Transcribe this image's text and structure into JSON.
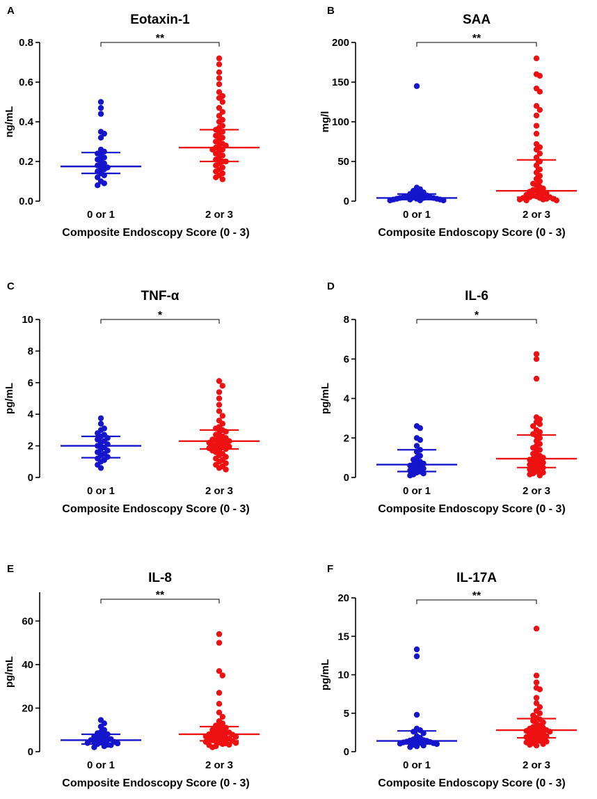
{
  "chart_data": [
    {
      "panel": "A",
      "type": "scatter",
      "title": "Eotaxin-1",
      "ylabel": "ng/mL",
      "xlabel": "Composite Endoscopy Score  (0 - 3)",
      "categories": [
        "0 or 1",
        "2 or 3"
      ],
      "ylim": [
        0,
        0.8
      ],
      "yticks": [
        0.0,
        0.2,
        0.4,
        0.6,
        0.8
      ],
      "ytick_labels": [
        "0.0",
        "0.2",
        "0.4",
        "0.6",
        "0.8"
      ],
      "significance": "**",
      "groups": [
        {
          "name": "0 or 1",
          "color": "#1515cc",
          "median": 0.175,
          "q1": 0.14,
          "q3": 0.245,
          "values": [
            0.5,
            0.47,
            0.44,
            0.35,
            0.34,
            0.32,
            0.26,
            0.25,
            0.24,
            0.23,
            0.22,
            0.21,
            0.2,
            0.19,
            0.18,
            0.17,
            0.17,
            0.16,
            0.15,
            0.14,
            0.13,
            0.12,
            0.1,
            0.09,
            0.08
          ]
        },
        {
          "name": "2 or 3",
          "color": "#ee1111",
          "median": 0.27,
          "q1": 0.2,
          "q3": 0.36,
          "values": [
            0.72,
            0.69,
            0.65,
            0.62,
            0.59,
            0.55,
            0.53,
            0.52,
            0.5,
            0.47,
            0.45,
            0.43,
            0.41,
            0.4,
            0.38,
            0.37,
            0.36,
            0.35,
            0.34,
            0.33,
            0.32,
            0.31,
            0.3,
            0.29,
            0.28,
            0.28,
            0.27,
            0.26,
            0.26,
            0.25,
            0.24,
            0.23,
            0.22,
            0.21,
            0.2,
            0.2,
            0.19,
            0.18,
            0.17,
            0.16,
            0.15,
            0.14,
            0.13,
            0.12,
            0.11
          ]
        }
      ]
    },
    {
      "panel": "B",
      "type": "scatter",
      "title": "SAA",
      "ylabel": "mg/l",
      "xlabel": "Composite Endoscopy Score  (0 - 3)",
      "categories": [
        "0 or 1",
        "2 or 3"
      ],
      "ylim": [
        0,
        200
      ],
      "yticks": [
        0,
        50,
        100,
        150,
        200
      ],
      "ytick_labels": [
        "0",
        "50",
        "100",
        "150",
        "200"
      ],
      "significance": "**",
      "groups": [
        {
          "name": "0 or 1",
          "color": "#1515cc",
          "median": 4,
          "q1": 2,
          "q3": 9,
          "values": [
            145,
            17,
            15,
            13,
            11,
            10,
            9,
            8,
            7,
            6,
            6,
            5,
            5,
            4,
            4,
            4,
            3,
            3,
            3,
            2,
            2,
            2,
            1,
            1,
            1
          ]
        },
        {
          "name": "2 or 3",
          "color": "#ee1111",
          "median": 13,
          "q1": 5,
          "q3": 52,
          "values": [
            180,
            160,
            158,
            142,
            138,
            120,
            115,
            108,
            95,
            85,
            72,
            68,
            65,
            60,
            55,
            50,
            45,
            40,
            36,
            32,
            28,
            25,
            22,
            20,
            18,
            16,
            14,
            13,
            12,
            11,
            10,
            9,
            8,
            7,
            6,
            5,
            5,
            4,
            4,
            3,
            3,
            2,
            2,
            1,
            1
          ]
        }
      ]
    },
    {
      "panel": "C",
      "type": "scatter",
      "title": "TNF-α",
      "ylabel": "pg/mL",
      "xlabel": "Composite Endoscopy Score  (0 - 3)",
      "categories": [
        "0 or 1",
        "2 or 3"
      ],
      "ylim": [
        0,
        10
      ],
      "yticks": [
        0,
        2,
        4,
        6,
        8,
        10
      ],
      "ytick_labels": [
        "0",
        "2",
        "4",
        "6",
        "8",
        "10"
      ],
      "significance": "*",
      "groups": [
        {
          "name": "0 or 1",
          "color": "#1515cc",
          "median": 2.0,
          "q1": 1.25,
          "q3": 2.6,
          "values": [
            3.75,
            3.4,
            3.1,
            3.0,
            2.8,
            2.7,
            2.6,
            2.5,
            2.4,
            2.3,
            2.2,
            2.1,
            2.0,
            1.9,
            1.8,
            1.7,
            1.6,
            1.5,
            1.4,
            1.3,
            1.2,
            1.1,
            1.0,
            0.8,
            0.6
          ]
        },
        {
          "name": "2 or 3",
          "color": "#ee1111",
          "median": 2.3,
          "q1": 1.8,
          "q3": 3.0,
          "values": [
            6.1,
            5.8,
            5.4,
            5.0,
            4.6,
            4.2,
            3.9,
            3.6,
            3.4,
            3.2,
            3.1,
            3.0,
            2.9,
            2.8,
            2.7,
            2.6,
            2.5,
            2.45,
            2.4,
            2.35,
            2.3,
            2.25,
            2.2,
            2.15,
            2.1,
            2.05,
            2.0,
            1.95,
            1.9,
            1.85,
            1.8,
            1.75,
            1.7,
            1.6,
            1.5,
            1.4,
            1.3,
            1.2,
            1.1,
            1.0,
            0.9,
            0.8,
            0.7,
            0.6,
            0.5
          ]
        }
      ]
    },
    {
      "panel": "D",
      "type": "scatter",
      "title": "IL-6",
      "ylabel": "pg/mL",
      "xlabel": "Composite Endoscopy Score  (0 - 3)",
      "categories": [
        "0 or 1",
        "2 or 3"
      ],
      "ylim": [
        0,
        8
      ],
      "yticks": [
        0,
        2,
        4,
        6,
        8
      ],
      "ytick_labels": [
        "0",
        "2",
        "4",
        "6",
        "8"
      ],
      "significance": "*",
      "groups": [
        {
          "name": "0 or 1",
          "color": "#1515cc",
          "median": 0.65,
          "q1": 0.3,
          "q3": 1.4,
          "values": [
            2.6,
            2.5,
            2.0,
            1.9,
            1.6,
            1.4,
            1.3,
            1.1,
            1.0,
            0.9,
            0.8,
            0.75,
            0.7,
            0.65,
            0.6,
            0.55,
            0.5,
            0.45,
            0.4,
            0.35,
            0.3,
            0.25,
            0.2,
            0.15,
            0.1
          ]
        },
        {
          "name": "2 or 3",
          "color": "#ee1111",
          "median": 0.95,
          "q1": 0.5,
          "q3": 2.15,
          "values": [
            6.25,
            6.0,
            5.0,
            3.05,
            2.95,
            2.8,
            2.7,
            2.6,
            2.4,
            2.3,
            2.2,
            2.1,
            2.0,
            1.85,
            1.7,
            1.6,
            1.5,
            1.4,
            1.3,
            1.2,
            1.1,
            1.05,
            1.0,
            0.95,
            0.9,
            0.85,
            0.8,
            0.75,
            0.7,
            0.65,
            0.6,
            0.55,
            0.5,
            0.45,
            0.4,
            0.35,
            0.3,
            0.25,
            0.2,
            0.15,
            0.1
          ]
        }
      ]
    },
    {
      "panel": "E",
      "type": "scatter",
      "title": "IL-8",
      "ylabel": "pg/mL",
      "xlabel": "Composite Endoscopy Score  (0 - 3)",
      "categories": [
        "0 or 1",
        "2 or 3"
      ],
      "ylim": [
        0,
        70
      ],
      "yticks": [
        0,
        20,
        40,
        60
      ],
      "ytick_labels": [
        "0",
        "20",
        "40",
        "60"
      ],
      "significance": "**",
      "groups": [
        {
          "name": "0 or 1",
          "color": "#1515cc",
          "median": 5.3,
          "q1": 3.5,
          "q3": 8.0,
          "values": [
            14.5,
            13.0,
            11.5,
            10.0,
            9.0,
            8.5,
            8.0,
            7.5,
            7.0,
            6.5,
            6.0,
            5.8,
            5.5,
            5.3,
            5.0,
            4.7,
            4.5,
            4.2,
            4.0,
            3.8,
            3.5,
            3.2,
            3.0,
            2.5,
            2.0
          ]
        },
        {
          "name": "2 or 3",
          "color": "#ee1111",
          "median": 8.0,
          "q1": 5.0,
          "q3": 11.5,
          "values": [
            54,
            50,
            37,
            35,
            27,
            22,
            18,
            16,
            14,
            13,
            12,
            11.5,
            11,
            10.5,
            10,
            9.5,
            9,
            8.8,
            8.5,
            8.2,
            8.0,
            7.8,
            7.5,
            7.2,
            7.0,
            6.8,
            6.5,
            6.2,
            6.0,
            5.8,
            5.5,
            5.2,
            5.0,
            4.8,
            4.5,
            4.2,
            4.0,
            3.8,
            3.5,
            3.2,
            3.0,
            2.5,
            2.0
          ]
        }
      ]
    },
    {
      "panel": "F",
      "type": "scatter",
      "title": "IL-17A",
      "ylabel": "pg/mL",
      "xlabel": "Composite Endoscopy Score  (0 - 3)",
      "categories": [
        "0 or 1",
        "2 or 3"
      ],
      "ylim": [
        0,
        20
      ],
      "yticks": [
        0,
        5,
        10,
        15,
        20
      ],
      "ytick_labels": [
        "0",
        "5",
        "10",
        "15",
        "20"
      ],
      "significance": "**",
      "groups": [
        {
          "name": "0 or 1",
          "color": "#1515cc",
          "median": 1.4,
          "q1": 1.0,
          "q3": 2.7,
          "values": [
            13.3,
            12.4,
            4.8,
            3.0,
            2.8,
            2.6,
            2.4,
            2.0,
            1.8,
            1.6,
            1.5,
            1.45,
            1.4,
            1.35,
            1.3,
            1.25,
            1.2,
            1.15,
            1.1,
            1.05,
            1.0,
            0.9,
            0.8,
            0.7,
            0.6
          ]
        },
        {
          "name": "2 or 3",
          "color": "#ee1111",
          "median": 2.8,
          "q1": 1.8,
          "q3": 4.3,
          "values": [
            16.0,
            9.9,
            9.0,
            8.3,
            8.1,
            7.0,
            6.3,
            5.8,
            5.3,
            5.0,
            4.7,
            4.4,
            4.2,
            4.0,
            3.8,
            3.6,
            3.4,
            3.2,
            3.1,
            3.0,
            2.9,
            2.8,
            2.75,
            2.7,
            2.6,
            2.5,
            2.4,
            2.3,
            2.2,
            2.1,
            2.0,
            1.9,
            1.8,
            1.7,
            1.6,
            1.5,
            1.4,
            1.3,
            1.2,
            1.1,
            1.0,
            0.9,
            0.8
          ]
        }
      ]
    }
  ]
}
